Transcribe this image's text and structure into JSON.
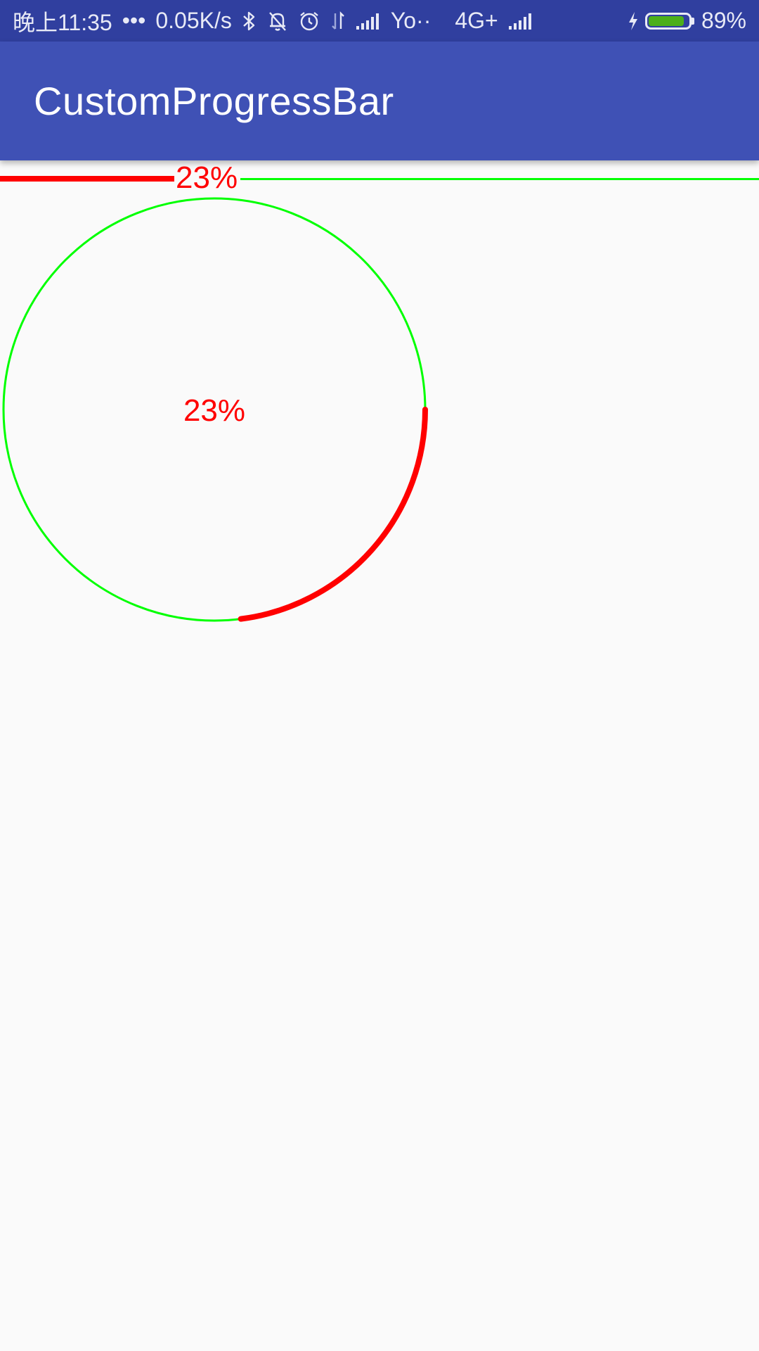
{
  "status_bar": {
    "time": "晚上11:35",
    "dots": "•••",
    "net_speed": "0.05K/s",
    "carrier": "Yo··",
    "network_type": "4G+",
    "battery_percent": "89%",
    "battery_level": 0.89,
    "battery_color": "#4caf1a",
    "icons": [
      "bluetooth-icon",
      "bell-muted-icon",
      "alarm-icon",
      "data-arrows-icon",
      "signal-icon",
      "signal-icon",
      "charging-icon",
      "battery-icon"
    ]
  },
  "app_bar": {
    "title": "CustomProgressBar",
    "color": "#3f51b5"
  },
  "progress": {
    "percent": 23,
    "label": "23%",
    "progress_color": "#ff0000",
    "track_color": "#00ff00"
  }
}
